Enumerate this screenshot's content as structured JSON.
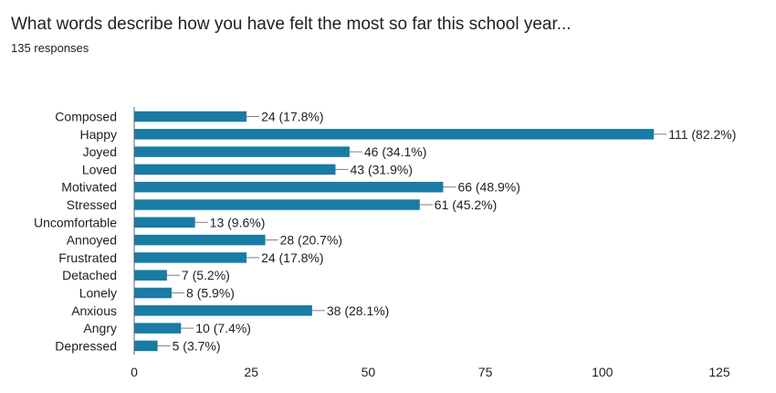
{
  "title": "What words describe how you have felt the most so far this school year...",
  "subtitle": "135 responses",
  "chart_data": {
    "type": "bar",
    "orientation": "horizontal",
    "categories": [
      "Composed",
      "Happy",
      "Joyed",
      "Loved",
      "Motivated",
      "Stressed",
      "Uncomfortable",
      "Annoyed",
      "Frustrated",
      "Detached",
      "Lonely",
      "Anxious",
      "Angry",
      "Depressed"
    ],
    "values": [
      24,
      111,
      46,
      43,
      66,
      61,
      13,
      28,
      24,
      7,
      8,
      38,
      10,
      5
    ],
    "data_labels": [
      "24 (17.8%)",
      "111 (82.2%)",
      "46 (34.1%)",
      "43 (31.9%)",
      "66 (48.9%)",
      "61 (45.2%)",
      "13 (9.6%)",
      "28 (20.7%)",
      "24 (17.8%)",
      "7 (5.2%)",
      "8 (5.9%)",
      "38 (28.1%)",
      "10 (7.4%)",
      "5 (3.7%)"
    ],
    "x_ticks": [
      0,
      25,
      50,
      75,
      100,
      125
    ],
    "xlim": [
      0,
      125
    ],
    "grid": false,
    "legend": "none",
    "bar_color": "#1a7ba5"
  }
}
